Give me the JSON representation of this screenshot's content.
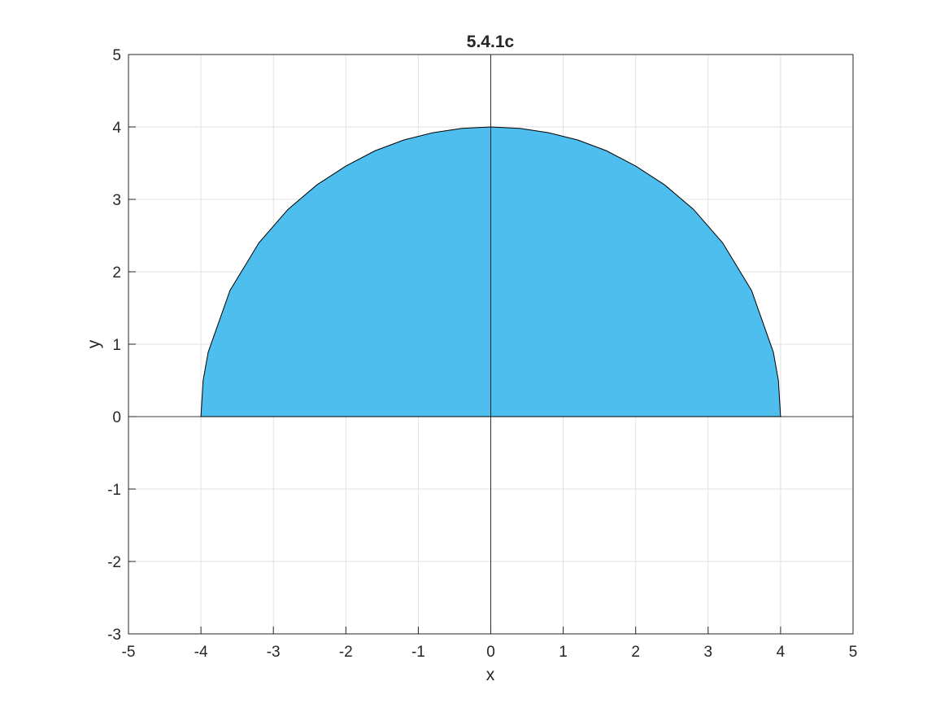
{
  "chart_data": {
    "type": "area",
    "title": "5.4.1c",
    "xlabel": "x",
    "ylabel": "y",
    "xlim": [
      -5,
      5
    ],
    "ylim": [
      -3,
      5
    ],
    "xticks": [
      -5,
      -4,
      -3,
      -2,
      -1,
      0,
      1,
      2,
      3,
      4,
      5
    ],
    "yticks": [
      -3,
      -2,
      -1,
      0,
      1,
      2,
      3,
      4,
      5
    ],
    "grid": true,
    "region": {
      "shape": "upper semicircle",
      "radius": 4,
      "center": [
        0,
        0
      ],
      "x": [
        -4,
        -3.97,
        -3.9,
        -3.6,
        -3.2,
        -2.8,
        -2.4,
        -2.0,
        -1.6,
        -1.2,
        -0.8,
        -0.4,
        0,
        0.4,
        0.8,
        1.2,
        1.6,
        2.0,
        2.4,
        2.8,
        3.2,
        3.6,
        3.9,
        3.97,
        4
      ],
      "y": [
        0,
        0.5,
        0.89,
        1.74,
        2.4,
        2.86,
        3.2,
        3.46,
        3.67,
        3.82,
        3.92,
        3.98,
        4,
        3.98,
        3.92,
        3.82,
        3.67,
        3.46,
        3.2,
        2.86,
        2.4,
        1.74,
        0.89,
        0.5,
        0
      ],
      "fill_color": "#4DBEEE",
      "edge_color": "#000000"
    },
    "reference_lines": {
      "x_axis_line": 0,
      "y_axis_line": 0,
      "color": "#000000"
    }
  }
}
